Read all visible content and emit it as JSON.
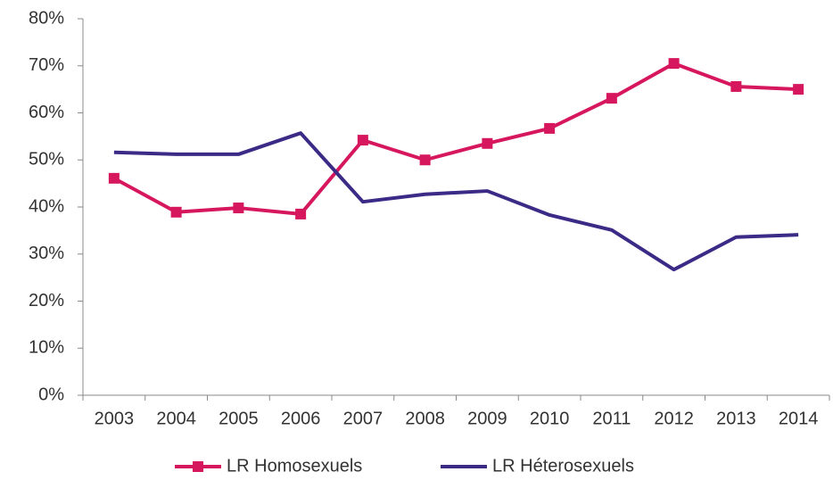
{
  "chart_data": {
    "type": "line",
    "categories": [
      "2003",
      "2004",
      "2005",
      "2006",
      "2007",
      "2008",
      "2009",
      "2010",
      "2011",
      "2012",
      "2013",
      "2014"
    ],
    "series": [
      {
        "name": "LR Homosexuels",
        "color": "#d6175e",
        "marker": "square",
        "values": [
          46.1,
          38.9,
          39.8,
          38.5,
          54.2,
          50,
          53.5,
          56.7,
          63.1,
          70.5,
          65.6,
          65
        ]
      },
      {
        "name": "LR Héterosexuels",
        "color": "#3b2a86",
        "values": [
          51.6,
          51.2,
          51.2,
          55.7,
          41.1,
          42.7,
          43.4,
          38.3,
          35.1,
          26.7,
          33.6,
          34.1
        ]
      }
    ],
    "ylim": [
      0,
      80
    ],
    "yticks": [
      {
        "value": 0,
        "label": "0%"
      },
      {
        "value": 10,
        "label": "10%"
      },
      {
        "value": 20,
        "label": "20%"
      },
      {
        "value": 30,
        "label": "30%"
      },
      {
        "value": 40,
        "label": "40%"
      },
      {
        "value": 50,
        "label": "50%"
      },
      {
        "value": 60,
        "label": "60%"
      },
      {
        "value": 70,
        "label": "70%"
      },
      {
        "value": 80,
        "label": "80%"
      }
    ],
    "legend": "bottom"
  }
}
